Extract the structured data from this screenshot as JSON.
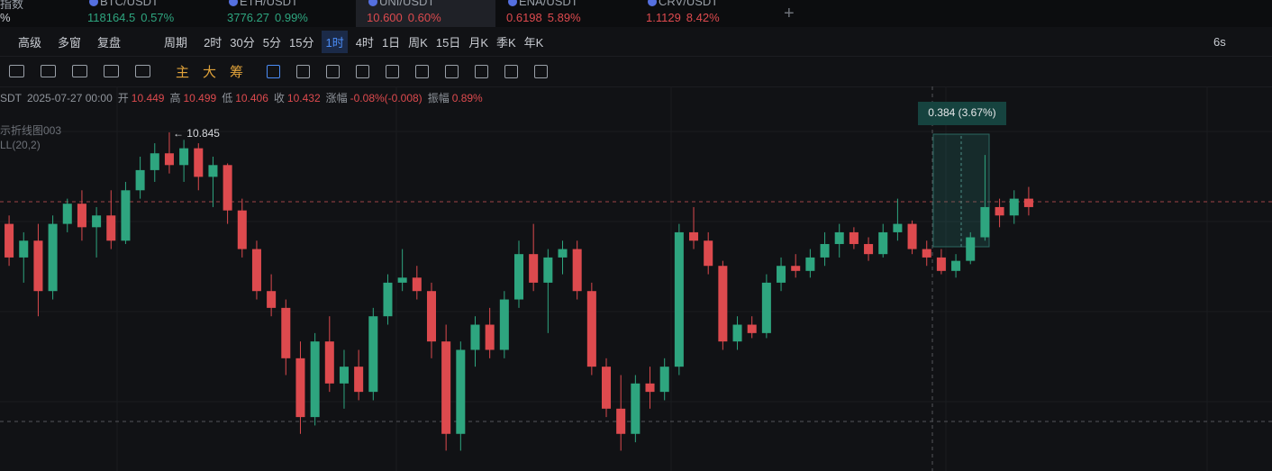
{
  "tabs": [
    {
      "name": "指数",
      "change": "%"
    },
    {
      "name": "BTC/USDT",
      "price": "118164.5",
      "change": "0.57%",
      "trend": "up"
    },
    {
      "name": "ETH/USDT",
      "price": "3776.27",
      "change": "0.99%",
      "trend": "up"
    },
    {
      "name": "UNI/USDT",
      "price": "10.600",
      "change": "0.60%",
      "trend": "down",
      "active": true
    },
    {
      "name": "ENA/USDT",
      "price": "0.6198",
      "change": "5.89%",
      "trend": "down"
    },
    {
      "name": "CRV/USDT",
      "price": "1.1129",
      "change": "8.42%",
      "trend": "down"
    }
  ],
  "add_tab": "+",
  "toolbar": {
    "left": [
      "高级",
      "多窗",
      "复盘"
    ],
    "period": "周期",
    "intervals": [
      "2时",
      "30分",
      "5分",
      "15分",
      "1时",
      "4时",
      "1日",
      "周K",
      "15日",
      "月K",
      "季K",
      "年K"
    ],
    "active_interval": 4,
    "refresh": "6s"
  },
  "draw_tools": [
    "主",
    "大",
    "筹"
  ],
  "info": {
    "symbol": "SDT",
    "time": "2025-07-27 00:00",
    "fields": [
      [
        "开",
        "10.449"
      ],
      [
        "高",
        "10.499"
      ],
      [
        "低",
        "10.406"
      ],
      [
        "收",
        "10.432"
      ],
      [
        "涨幅",
        "-0.08%(-0.008)"
      ],
      [
        "振幅",
        "0.89%"
      ]
    ]
  },
  "indicators": [
    "示折线图003",
    "LL(20,2)"
  ],
  "chart": {
    "type": "candlestick",
    "ylim": [
      8.829,
      11.118
    ],
    "high_label": "← 10.845",
    "measure": "0.384 (3.67%)",
    "colors": {
      "up": "#2ea57f",
      "down": "#dd4a4e"
    },
    "candles": [
      [
        10.3,
        10.35,
        10.05,
        10.1
      ],
      [
        10.1,
        10.25,
        9.95,
        10.2
      ],
      [
        10.2,
        10.3,
        9.75,
        9.9
      ],
      [
        9.9,
        10.35,
        9.85,
        10.3
      ],
      [
        10.3,
        10.45,
        10.25,
        10.42
      ],
      [
        10.42,
        10.5,
        10.2,
        10.28
      ],
      [
        10.28,
        10.4,
        10.1,
        10.35
      ],
      [
        10.35,
        10.5,
        10.15,
        10.2
      ],
      [
        10.2,
        10.55,
        10.18,
        10.5
      ],
      [
        10.5,
        10.7,
        10.45,
        10.62
      ],
      [
        10.62,
        10.78,
        10.55,
        10.72
      ],
      [
        10.72,
        10.845,
        10.6,
        10.65
      ],
      [
        10.65,
        10.8,
        10.55,
        10.75
      ],
      [
        10.75,
        10.78,
        10.5,
        10.58
      ],
      [
        10.58,
        10.7,
        10.4,
        10.65
      ],
      [
        10.65,
        10.66,
        10.3,
        10.38
      ],
      [
        10.38,
        10.45,
        10.1,
        10.15
      ],
      [
        10.15,
        10.2,
        9.85,
        9.9
      ],
      [
        9.9,
        10.0,
        9.75,
        9.8
      ],
      [
        9.8,
        9.85,
        9.4,
        9.5
      ],
      [
        9.5,
        9.6,
        9.05,
        9.15
      ],
      [
        9.15,
        9.65,
        9.1,
        9.6
      ],
      [
        9.6,
        9.75,
        9.3,
        9.35
      ],
      [
        9.35,
        9.55,
        9.2,
        9.45
      ],
      [
        9.45,
        9.55,
        9.25,
        9.3
      ],
      [
        9.3,
        9.8,
        9.25,
        9.75
      ],
      [
        9.75,
        10.0,
        9.7,
        9.95
      ],
      [
        9.95,
        10.15,
        9.9,
        9.98
      ],
      [
        9.98,
        10.05,
        9.85,
        9.9
      ],
      [
        9.9,
        9.95,
        9.5,
        9.6
      ],
      [
        9.6,
        9.7,
        8.95,
        9.05
      ],
      [
        9.05,
        9.6,
        8.95,
        9.55
      ],
      [
        9.55,
        9.75,
        9.45,
        9.7
      ],
      [
        9.7,
        9.8,
        9.5,
        9.55
      ],
      [
        9.55,
        9.9,
        9.5,
        9.85
      ],
      [
        9.85,
        10.2,
        9.8,
        10.12
      ],
      [
        10.12,
        10.3,
        9.9,
        9.95
      ],
      [
        9.95,
        10.15,
        9.65,
        10.1
      ],
      [
        10.1,
        10.2,
        10.0,
        10.15
      ],
      [
        10.15,
        10.2,
        9.85,
        9.9
      ],
      [
        9.9,
        9.95,
        9.4,
        9.45
      ],
      [
        9.45,
        9.5,
        9.15,
        9.2
      ],
      [
        9.2,
        9.4,
        8.95,
        9.05
      ],
      [
        9.05,
        9.4,
        9.0,
        9.35
      ],
      [
        9.35,
        9.45,
        9.2,
        9.3
      ],
      [
        9.3,
        9.5,
        9.25,
        9.45
      ],
      [
        9.45,
        10.3,
        9.4,
        10.25
      ],
      [
        10.25,
        10.4,
        10.15,
        10.2
      ],
      [
        10.2,
        10.25,
        10.0,
        10.05
      ],
      [
        10.05,
        10.08,
        9.55,
        9.6
      ],
      [
        9.6,
        9.75,
        9.55,
        9.7
      ],
      [
        9.7,
        9.75,
        9.62,
        9.65
      ],
      [
        9.65,
        10.0,
        9.62,
        9.95
      ],
      [
        9.95,
        10.1,
        9.9,
        10.05
      ],
      [
        10.05,
        10.12,
        9.98,
        10.02
      ],
      [
        10.02,
        10.15,
        9.98,
        10.1
      ],
      [
        10.1,
        10.25,
        10.05,
        10.18
      ],
      [
        10.18,
        10.3,
        10.1,
        10.25
      ],
      [
        10.25,
        10.28,
        10.15,
        10.18
      ],
      [
        10.18,
        10.22,
        10.08,
        10.12
      ],
      [
        10.12,
        10.3,
        10.1,
        10.25
      ],
      [
        10.25,
        10.45,
        10.2,
        10.3
      ],
      [
        10.3,
        10.32,
        10.12,
        10.15
      ],
      [
        10.15,
        10.2,
        10.05,
        10.1
      ],
      [
        10.1,
        10.15,
        10.0,
        10.02
      ],
      [
        10.02,
        10.12,
        9.98,
        10.08
      ],
      [
        10.08,
        10.25,
        10.06,
        10.22
      ],
      [
        10.22,
        10.71,
        10.2,
        10.4
      ],
      [
        10.4,
        10.45,
        10.28,
        10.35
      ],
      [
        10.35,
        10.5,
        10.3,
        10.45
      ],
      [
        10.45,
        10.52,
        10.35,
        10.4
      ]
    ]
  }
}
